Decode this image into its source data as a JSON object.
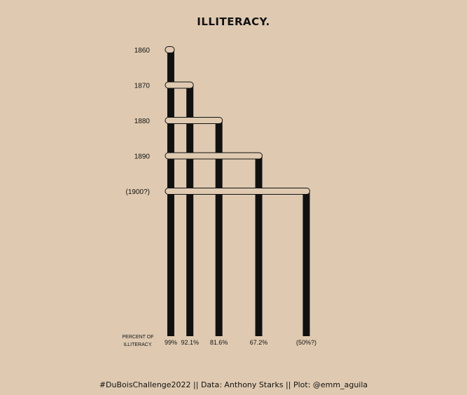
{
  "chart_data": {
    "type": "bar",
    "title": "ILLITERACY.",
    "categories": [
      "1860",
      "1870",
      "1880",
      "1890",
      "(1900?)"
    ],
    "values": [
      99,
      92.1,
      81.6,
      67.2,
      50
    ],
    "value_labels": [
      "99%",
      "92.1%",
      "81.6%",
      "67.2%",
      "(50%?)"
    ],
    "axis_label": [
      "PERCENT OF",
      "ILLITERACY."
    ],
    "colors": {
      "background": "#dfcab1",
      "bar": "#111111",
      "connector_fill": "#dfcab1",
      "connector_stroke": "#111111"
    }
  },
  "caption": "#DuBoisChallenge2022 || Data: Anthony Starks || Plot: @emm_aguila"
}
